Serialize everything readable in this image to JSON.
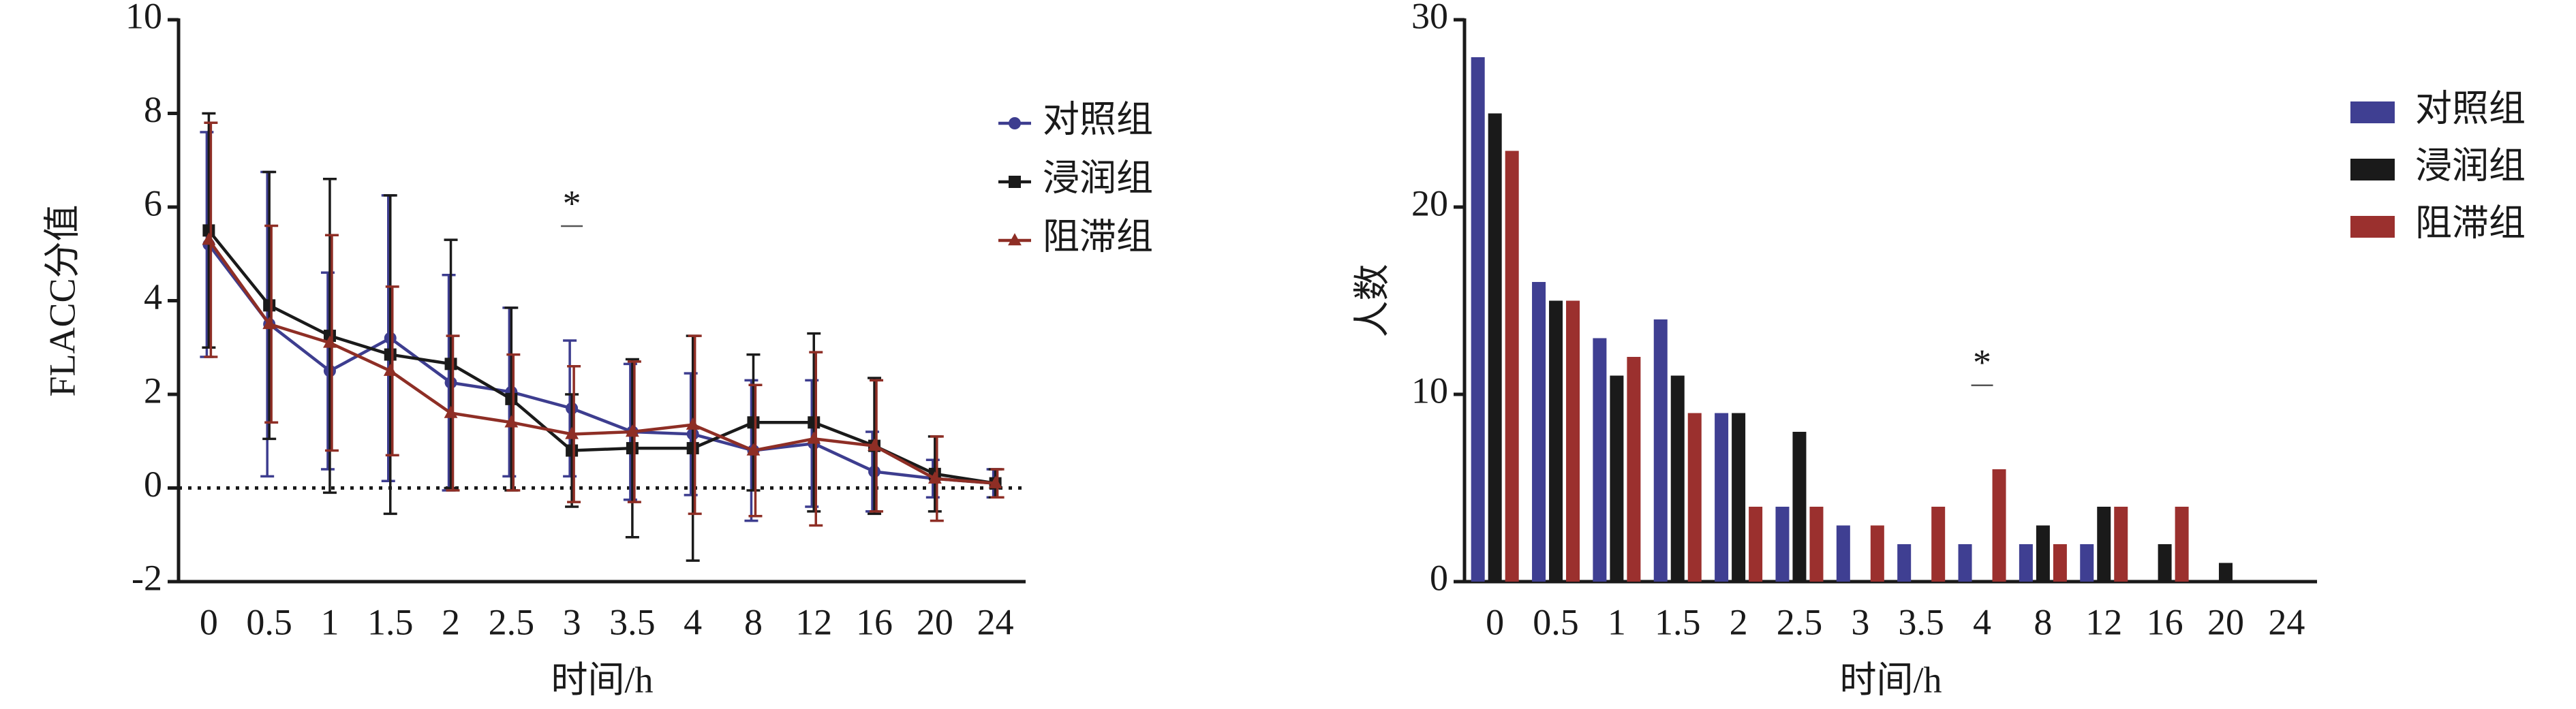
{
  "chart_data": [
    {
      "type": "line",
      "x_label": "时间/h",
      "y_label": "FLACC分值",
      "categories": [
        "0",
        "0.5",
        "1",
        "1.5",
        "2",
        "2.5",
        "3",
        "3.5",
        "4",
        "8",
        "12",
        "16",
        "20",
        "24"
      ],
      "ylim": [
        -2,
        10
      ],
      "yticks": [
        -2,
        0,
        2,
        4,
        6,
        8,
        10
      ],
      "legend": "right",
      "reference_line": {
        "y": 0,
        "style": "dotted"
      },
      "annotations": [
        {
          "text": "*",
          "category": "3",
          "y": 6
        }
      ],
      "series": [
        {
          "name": "对照组",
          "color": "#3d3d8f",
          "marker": "circle",
          "values": [
            5.2,
            3.5,
            2.5,
            3.2,
            2.25,
            2.05,
            1.7,
            1.2,
            1.15,
            0.8,
            0.95,
            0.35,
            0.2,
            0.1
          ],
          "errors": [
            2.4,
            3.25,
            2.1,
            3.05,
            2.3,
            1.8,
            1.45,
            1.45,
            1.3,
            1.5,
            1.35,
            0.85,
            0.4,
            0.3
          ]
        },
        {
          "name": "浸润组",
          "color": "#1a1a1a",
          "marker": "square",
          "values": [
            5.5,
            3.9,
            3.25,
            2.85,
            2.65,
            1.9,
            0.8,
            0.85,
            0.85,
            1.4,
            1.4,
            0.9,
            0.3,
            0.1
          ],
          "errors": [
            2.5,
            2.85,
            3.35,
            3.4,
            2.65,
            1.95,
            1.2,
            1.9,
            2.4,
            1.45,
            1.9,
            1.45,
            0.8,
            0.3
          ]
        },
        {
          "name": "阻滞组",
          "color": "#8e2e25",
          "marker": "triangle",
          "values": [
            5.3,
            3.5,
            3.1,
            2.5,
            1.6,
            1.4,
            1.15,
            1.2,
            1.35,
            0.8,
            1.05,
            0.9,
            0.2,
            0.1
          ],
          "errors": [
            2.5,
            2.1,
            2.3,
            1.8,
            1.65,
            1.45,
            1.45,
            1.5,
            1.9,
            1.4,
            1.85,
            1.4,
            0.9,
            0.3
          ]
        }
      ]
    },
    {
      "type": "bar",
      "x_label": "时间/h",
      "y_label": "人数",
      "categories": [
        "0",
        "0.5",
        "1",
        "1.5",
        "2",
        "2.5",
        "3",
        "3.5",
        "4",
        "8",
        "12",
        "16",
        "20",
        "24"
      ],
      "ylim": [
        0,
        30
      ],
      "yticks": [
        0,
        10,
        20,
        30
      ],
      "legend": "right",
      "annotations": [
        {
          "text": "*",
          "category": "4",
          "y": 11.5
        }
      ],
      "series": [
        {
          "name": "对照组",
          "color": "#3f3f92",
          "values": [
            28,
            16,
            13,
            14,
            9,
            4,
            3,
            2,
            2,
            2,
            2,
            0,
            0,
            0
          ]
        },
        {
          "name": "浸润组",
          "color": "#1a1a1a",
          "values": [
            25,
            15,
            11,
            11,
            9,
            8,
            0,
            0,
            0,
            3,
            4,
            2,
            1,
            0
          ]
        },
        {
          "name": "阻滞组",
          "color": "#9b302e",
          "values": [
            23,
            15,
            12,
            9,
            4,
            4,
            3,
            4,
            6,
            2,
            4,
            4,
            0,
            0
          ]
        }
      ]
    }
  ]
}
